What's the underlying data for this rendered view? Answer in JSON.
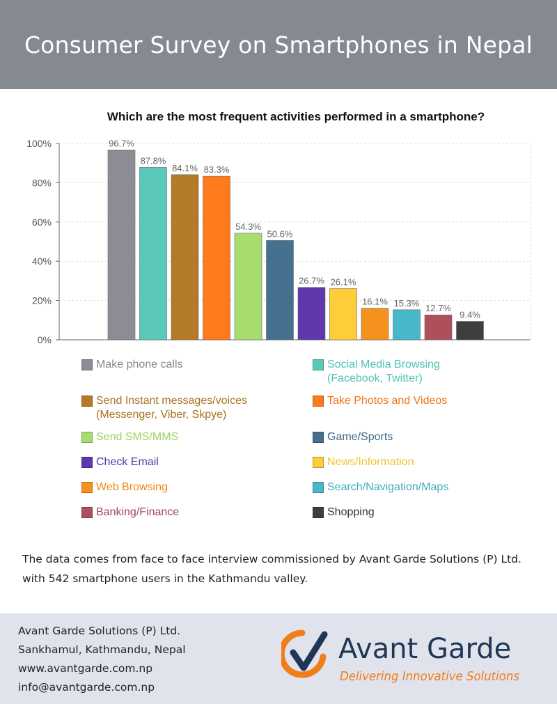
{
  "header": {
    "title": "Consumer Survey on Smartphones in Nepal"
  },
  "chart_data": {
    "type": "bar",
    "title": "Which are the most frequent activities performed in a smartphone?",
    "xlabel": "",
    "ylabel": "",
    "ylim": [
      0,
      100
    ],
    "yticks": [
      "0%",
      "20%",
      "40%",
      "60%",
      "80%",
      "100%"
    ],
    "grid": true,
    "legend_placement": "bottom",
    "categories": [
      "Make phone calls",
      "Social Media Browsing (Facebook, Twitter)",
      "Send Instant messages/voices (Messenger, Viber, Skpye)",
      "Take Photos and Videos",
      "Send SMS/MMS",
      "Game/Sports",
      "Check Email",
      "News/Information",
      "Web Browsing",
      "Search/Navigation/Maps",
      "Banking/Finance",
      "Shopping"
    ],
    "values": [
      96.7,
      87.8,
      84.1,
      83.3,
      54.3,
      50.6,
      26.7,
      26.1,
      16.1,
      15.3,
      12.7,
      9.4
    ],
    "value_labels": [
      "96.7%",
      "87.8%",
      "84.1%",
      "83.3%",
      "54.3%",
      "50.6%",
      "26.7%",
      "26.1%",
      "16.1%",
      "15.3%",
      "12.7%",
      "9.4%"
    ],
    "colors": [
      "#8c8c94",
      "#5bc9b9",
      "#b37a27",
      "#ff7a1a",
      "#a6dd6e",
      "#46708f",
      "#6038ad",
      "#ffcd3a",
      "#f5921e",
      "#48b7c9",
      "#ae4f5c",
      "#3e3e3e"
    ]
  },
  "legend": [
    {
      "lines": [
        "Make phone calls"
      ],
      "color": "#8c8c94",
      "text_color": "#888888"
    },
    {
      "lines": [
        "Social Media Browsing",
        "(Facebook, Twitter)"
      ],
      "color": "#5bc9b9",
      "text_color": "#4fc3b3"
    },
    {
      "lines": [
        "Send Instant messages/voices",
        "(Messenger, Viber, Skpye)"
      ],
      "color": "#b37a27",
      "text_color": "#a8711f"
    },
    {
      "lines": [
        "Take Photos and Videos"
      ],
      "color": "#ff7a1a",
      "text_color": "#f07318"
    },
    {
      "lines": [
        "Send SMS/MMS"
      ],
      "color": "#a6dd6e",
      "text_color": "#9cd464"
    },
    {
      "lines": [
        "Game/Sports"
      ],
      "color": "#46708f",
      "text_color": "#3e6685"
    },
    {
      "lines": [
        "Check Email"
      ],
      "color": "#6038ad",
      "text_color": "#5733a3"
    },
    {
      "lines": [
        "News/Information"
      ],
      "color": "#ffcd3a",
      "text_color": "#f5c12c"
    },
    {
      "lines": [
        "Web Browsing"
      ],
      "color": "#f5921e",
      "text_color": "#ec8a16"
    },
    {
      "lines": [
        "Search/Navigation/Maps"
      ],
      "color": "#48b7c9",
      "text_color": "#3eadbf"
    },
    {
      "lines": [
        "Banking/Finance"
      ],
      "color": "#ae4f5c",
      "text_color": "#a44653"
    },
    {
      "lines": [
        "Shopping"
      ],
      "color": "#3e3e3e",
      "text_color": "#333333"
    }
  ],
  "note": "The data comes from face to face interview commissioned by Avant Garde Solutions (P) Ltd. with 542 smartphone users in the Kathmandu valley.",
  "footer": {
    "company": "Avant Garde Solutions (P) Ltd.",
    "address": "Sankhamul, Kathmandu, Nepal",
    "website": "www.avantgarde.com.np",
    "email": "info@avantgarde.com.np"
  },
  "logo": {
    "name": "Avant Garde",
    "tagline": "Delivering Innovative Solutions",
    "name_color": "#1f3654",
    "accent_color": "#f07d1a"
  }
}
